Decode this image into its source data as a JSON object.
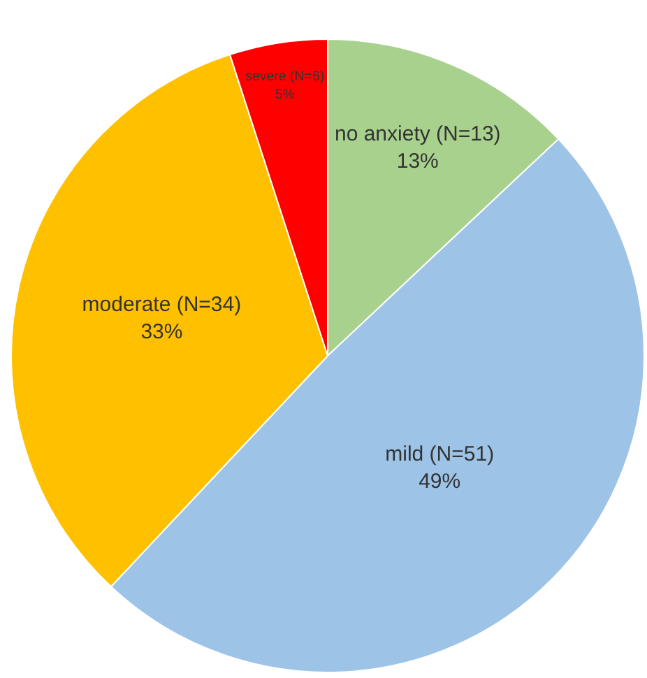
{
  "chart_data": {
    "type": "pie",
    "categories": [
      "no anxiety (N=13)",
      "mild (N=51)",
      "moderate (N=34)",
      "severe (N=6)"
    ],
    "values": [
      13,
      49,
      33,
      5
    ],
    "value_labels": [
      "13%",
      "49%",
      "33%",
      "5%"
    ],
    "colors": [
      "#a9d18e",
      "#9dc3e6",
      "#ffc000",
      "#ff0000"
    ],
    "legend": false
  }
}
